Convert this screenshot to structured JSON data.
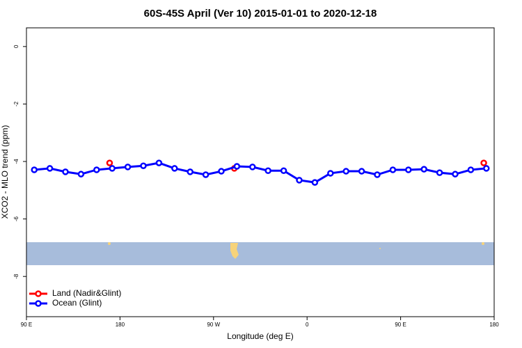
{
  "chart_data": {
    "type": "line",
    "title": "60S-45S April (Ver 10)   2015-01-01 to 2020-12-18",
    "xlabel": "Longitude (deg E)",
    "ylabel": "XCO2 - MLO trend (ppm)",
    "xlim": [
      90,
      540
    ],
    "ylim": [
      -9.4,
      0.65
    ],
    "xticks": [
      {
        "value": 90,
        "label": "90 E"
      },
      {
        "value": 180,
        "label": "180"
      },
      {
        "value": 270,
        "label": "90 W"
      },
      {
        "value": 360,
        "label": "0"
      },
      {
        "value": 450,
        "label": "90 E"
      },
      {
        "value": 540,
        "label": "180"
      }
    ],
    "yticks": [
      0,
      -2,
      -4,
      -6,
      -8
    ],
    "legend": "bottom-left",
    "series": [
      {
        "name": "Land (Nadir&Glint)",
        "color": "#ff0000",
        "line": false,
        "x": [
          170,
          290,
          530
        ],
        "values": [
          -4.05,
          -4.24,
          -4.05
        ]
      },
      {
        "name": "Ocean (Glint)",
        "color": "#0000ff",
        "line": true,
        "x": [
          97.5,
          112.5,
          127.5,
          142.5,
          157.5,
          172.5,
          187.5,
          202.5,
          217.5,
          232.5,
          247.5,
          262.5,
          277.5,
          292.5,
          307.5,
          322.5,
          337.5,
          352.5,
          367.5,
          382.5,
          397.5,
          412.5,
          427.5,
          442.5,
          457.5,
          472.5,
          487.5,
          502.5,
          517.5,
          532.5
        ],
        "values": [
          -4.29,
          -4.24,
          -4.36,
          -4.44,
          -4.29,
          -4.24,
          -4.19,
          -4.15,
          -4.05,
          -4.24,
          -4.36,
          -4.46,
          -4.34,
          -4.17,
          -4.19,
          -4.32,
          -4.32,
          -4.65,
          -4.73,
          -4.41,
          -4.34,
          -4.34,
          -4.46,
          -4.29,
          -4.29,
          -4.27,
          -4.39,
          -4.44,
          -4.29,
          -4.24
        ]
      }
    ]
  }
}
